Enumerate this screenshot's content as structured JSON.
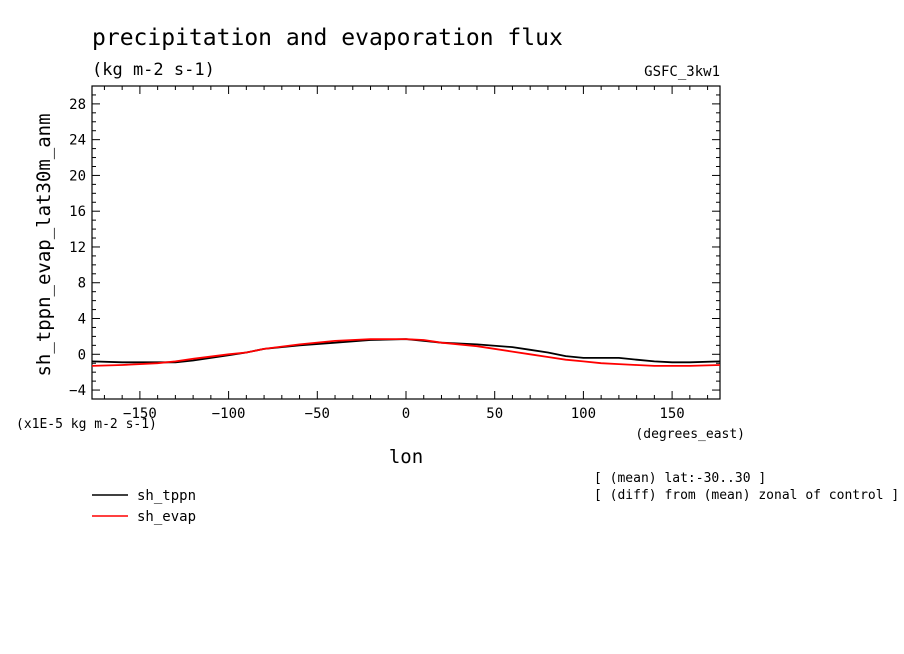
{
  "chart_data": {
    "type": "line",
    "title": "precipitation and evaporation flux",
    "units": "(kg m-2 s-1)",
    "model_label": "GSFC_3kw1",
    "ylabel": "sh_tppn_evap_lat30m_anm",
    "xlabel": "lon",
    "xunits": "(degrees_east)",
    "yscale_note": "(x1E-5 kg m-2 s-1)",
    "notes": [
      "[ (mean) lat:-30..30 ]",
      "[ (diff) from (mean) zonal of control ]"
    ],
    "xlim": [
      -177,
      177
    ],
    "ylim": [
      -5,
      30
    ],
    "xticks": [
      -150,
      -100,
      -50,
      0,
      50,
      100,
      150
    ],
    "yticks": [
      -4,
      0,
      4,
      8,
      12,
      16,
      20,
      24,
      28
    ],
    "grid": false,
    "legend_position": "bottom-left",
    "x": [
      -177,
      -160,
      -140,
      -130,
      -120,
      -100,
      -90,
      -80,
      -60,
      -40,
      -20,
      0,
      10,
      20,
      40,
      60,
      70,
      80,
      90,
      100,
      110,
      120,
      130,
      140,
      150,
      160,
      177
    ],
    "series": [
      {
        "name": "sh_tppn",
        "color": "#000000",
        "values": [
          -0.8,
          -0.9,
          -0.9,
          -0.9,
          -0.7,
          -0.1,
          0.2,
          0.6,
          1.0,
          1.3,
          1.6,
          1.7,
          1.5,
          1.3,
          1.1,
          0.8,
          0.5,
          0.2,
          -0.2,
          -0.4,
          -0.4,
          -0.4,
          -0.6,
          -0.8,
          -0.9,
          -0.9,
          -0.8
        ]
      },
      {
        "name": "sh_evap",
        "color": "#ff0000",
        "values": [
          -1.3,
          -1.2,
          -1.0,
          -0.8,
          -0.5,
          0.0,
          0.2,
          0.6,
          1.1,
          1.5,
          1.7,
          1.7,
          1.6,
          1.3,
          0.9,
          0.3,
          0.0,
          -0.3,
          -0.6,
          -0.8,
          -1.0,
          -1.1,
          -1.2,
          -1.3,
          -1.3,
          -1.3,
          -1.2
        ]
      }
    ]
  }
}
